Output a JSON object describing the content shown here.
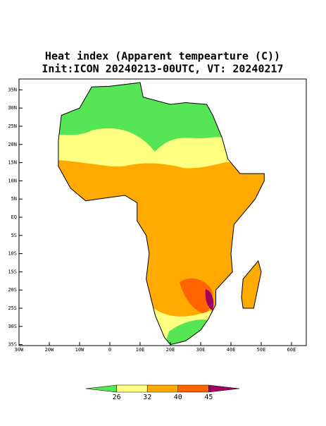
{
  "header": {
    "title": "Heat index (Apparent tempearture (C))",
    "subtitle": "Init:ICON 20240213-00UTC, VT: 20240217"
  },
  "map": {
    "lon_ticks": [
      {
        "value": -30,
        "label": "30W"
      },
      {
        "value": -20,
        "label": "20W"
      },
      {
        "value": -10,
        "label": "10W"
      },
      {
        "value": 0,
        "label": "0"
      },
      {
        "value": 10,
        "label": "10E"
      },
      {
        "value": 20,
        "label": "20E"
      },
      {
        "value": 30,
        "label": "30E"
      },
      {
        "value": 40,
        "label": "40E"
      },
      {
        "value": 50,
        "label": "50E"
      },
      {
        "value": 60,
        "label": "60E"
      }
    ],
    "lat_ticks": [
      {
        "value": 35,
        "label": "35N"
      },
      {
        "value": 30,
        "label": "30N"
      },
      {
        "value": 25,
        "label": "25N"
      },
      {
        "value": 20,
        "label": "20N"
      },
      {
        "value": 15,
        "label": "15N"
      },
      {
        "value": 10,
        "label": "10N"
      },
      {
        "value": 5,
        "label": "5N"
      },
      {
        "value": 0,
        "label": "EQ"
      },
      {
        "value": -5,
        "label": "5S"
      },
      {
        "value": -10,
        "label": "10S"
      },
      {
        "value": -15,
        "label": "15S"
      },
      {
        "value": -20,
        "label": "20S"
      },
      {
        "value": -25,
        "label": "25S"
      },
      {
        "value": -30,
        "label": "30S"
      },
      {
        "value": -35,
        "label": "35S"
      }
    ]
  },
  "colorbar": {
    "levels": [
      26,
      32,
      40,
      45
    ],
    "colors": [
      "#55e555",
      "#ffff80",
      "#ffaa00",
      "#ff6400",
      "#a00060"
    ]
  }
}
